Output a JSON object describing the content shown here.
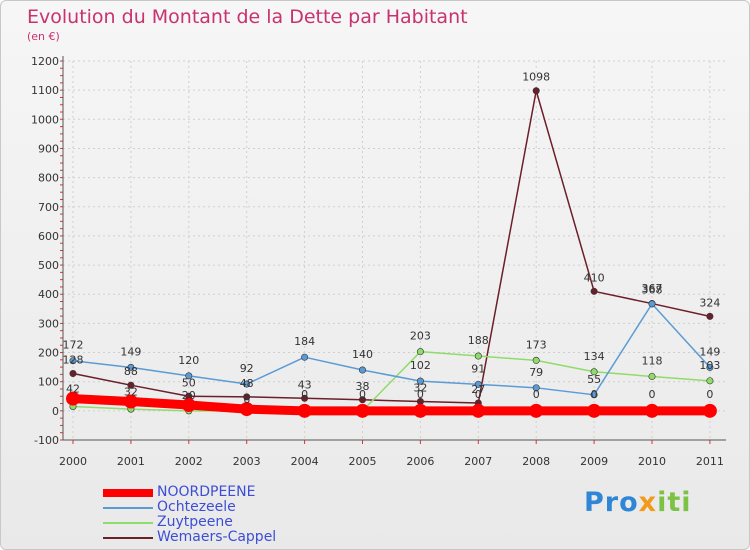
{
  "title": "Evolution du Montant de la Dette par Habitant",
  "unit_label": "(en €)",
  "chart_data": {
    "type": "line",
    "title": "Evolution du Montant de la Dette par Habitant",
    "ylabel": "(en €)",
    "xlabel": "",
    "ylim": [
      -100,
      1200
    ],
    "yticks": [
      -100,
      0,
      100,
      200,
      300,
      400,
      500,
      600,
      700,
      800,
      900,
      1000,
      1100,
      1200
    ],
    "x": [
      "2000",
      "2001",
      "2002",
      "2003",
      "2004",
      "2005",
      "2006",
      "2007",
      "2008",
      "2009",
      "2010",
      "2011"
    ],
    "series": [
      {
        "name": "NOORDPEENE",
        "color": "#ff0000",
        "values": [
          42,
          32,
          20,
          6,
          0,
          0,
          0,
          0,
          0,
          0,
          0,
          0
        ]
      },
      {
        "name": "Ochtezeele",
        "color": "#5b9bd5",
        "values": [
          172,
          149,
          120,
          92,
          184,
          140,
          102,
          91,
          79,
          55,
          367,
          149
        ]
      },
      {
        "name": "Zuytpeene",
        "color": "#8fdc6a",
        "values": [
          15,
          6,
          0,
          0,
          0,
          0,
          203,
          188,
          173,
          134,
          118,
          103
        ]
      },
      {
        "name": "Wemaers-Cappel",
        "color": "#6b1f2a",
        "values": [
          128,
          88,
          50,
          48,
          43,
          38,
          32,
          27,
          1098,
          410,
          368,
          324
        ]
      }
    ],
    "data_labels": {
      "NOORDPEENE": [
        "42",
        "32",
        "20",
        "6",
        "0",
        "0",
        "0",
        "0",
        "0",
        "0",
        "0",
        "0"
      ],
      "Ochtezeele": [
        "172",
        "149",
        "120",
        "92",
        "184",
        "140",
        "102",
        "91",
        "79",
        "55",
        "367",
        "149"
      ],
      "Zuytpeene": [
        "",
        "",
        "",
        "",
        "",
        "",
        "203",
        "188",
        "173",
        "134",
        "118",
        "103"
      ],
      "Wemaers-Cappel": [
        "128",
        "88",
        "50",
        "48",
        "43",
        "38",
        "32",
        "27",
        "1098",
        "410",
        "368",
        "324"
      ]
    },
    "legend_position": "bottom-left"
  },
  "logo": {
    "part1": "Pro",
    "part2": "x",
    "part3": "iti"
  }
}
